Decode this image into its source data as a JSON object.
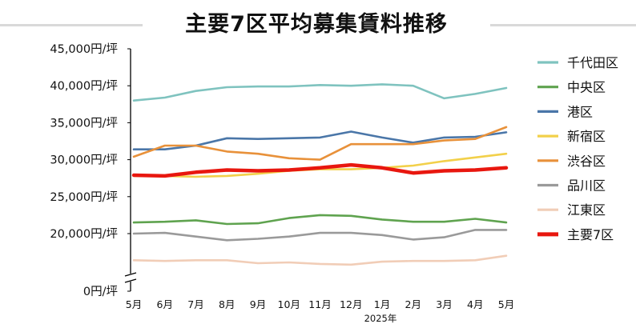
{
  "chart_data": {
    "type": "line",
    "title": "主要7区平均募集賃料推移",
    "categories": [
      "5月",
      "6月",
      "7月",
      "8月",
      "9月",
      "10月",
      "11月",
      "12月",
      "1月",
      "2月",
      "3月",
      "4月",
      "5月"
    ],
    "x_group_label": "2025年",
    "y_ticks": [
      "0円/坪",
      "20,000円/坪",
      "25,000円/坪",
      "30,000円/坪",
      "35,000円/坪",
      "40,000円/坪",
      "45,000円/坪"
    ],
    "ylim": [
      0,
      45000
    ],
    "axis_break": "between 0 and 20,000",
    "grid": false,
    "legend_position": "right",
    "series": [
      {
        "name": "千代田区",
        "color": "#7fc3bf",
        "values": [
          38000,
          38400,
          39300,
          39800,
          39900,
          39900,
          40100,
          40000,
          40200,
          40000,
          38300,
          38900,
          39700
        ]
      },
      {
        "name": "中央区",
        "color": "#5fa34f",
        "values": [
          21500,
          21600,
          21800,
          21300,
          21400,
          22100,
          22500,
          22400,
          21900,
          21600,
          21600,
          22000,
          21500
        ]
      },
      {
        "name": "港区",
        "color": "#4a76a8",
        "values": [
          31400,
          31400,
          31900,
          32900,
          32800,
          32900,
          33000,
          33800,
          33000,
          32300,
          33000,
          33100,
          33700
        ]
      },
      {
        "name": "新宿区",
        "color": "#f2d04a",
        "values": [
          27800,
          27800,
          27700,
          27800,
          28100,
          28500,
          28700,
          28700,
          28900,
          29200,
          29800,
          30300,
          30800
        ]
      },
      {
        "name": "渋谷区",
        "color": "#e8913a",
        "values": [
          30400,
          31900,
          31900,
          31100,
          30800,
          30200,
          30000,
          32100,
          32100,
          32100,
          32600,
          32800,
          34400
        ]
      },
      {
        "name": "品川区",
        "color": "#9a9a9a",
        "values": [
          20000,
          20100,
          19600,
          19100,
          19300,
          19600,
          20100,
          20100,
          19800,
          19200,
          19500,
          20500,
          20500
        ]
      },
      {
        "name": "江東区",
        "color": "#f1cdb7",
        "values": [
          16400,
          16300,
          16400,
          16400,
          16000,
          16100,
          15900,
          15800,
          16200,
          16300,
          16300,
          16400,
          17000
        ]
      },
      {
        "name": "主要7区",
        "color": "#e8170f",
        "emphasis": true,
        "values": [
          27900,
          27800,
          28300,
          28600,
          28500,
          28600,
          28900,
          29300,
          28900,
          28200,
          28500,
          28600,
          28900
        ]
      }
    ]
  }
}
